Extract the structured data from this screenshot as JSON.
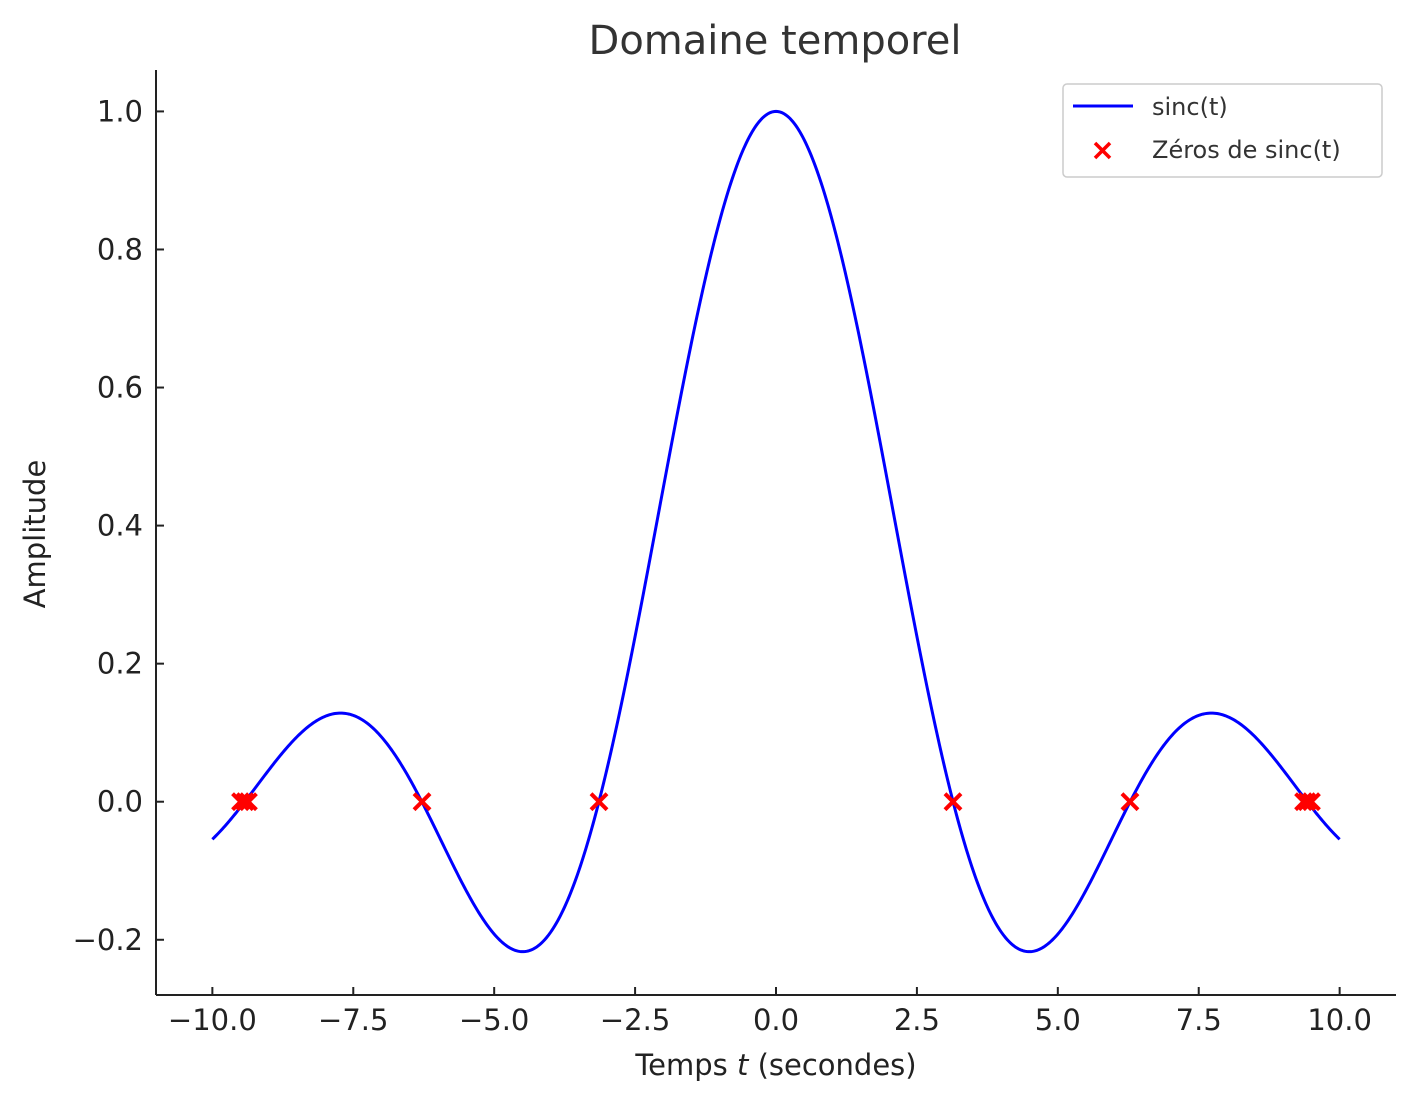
{
  "chart_data": {
    "type": "line",
    "title": "Domaine temporel",
    "xlabel_prefix": "Temps ",
    "xlabel_var": "t",
    "xlabel_suffix": " (secondes)",
    "ylabel": "Amplitude",
    "xlim": [
      -11.0,
      11.0
    ],
    "ylim": [
      -0.28,
      1.06
    ],
    "x_ticks": [
      -10.0,
      -7.5,
      -5.0,
      -2.5,
      0.0,
      2.5,
      5.0,
      7.5,
      10.0
    ],
    "x_tick_labels": [
      "−10.0",
      "−7.5",
      "−5.0",
      "−2.5",
      "0.0",
      "2.5",
      "5.0",
      "7.5",
      "10.0"
    ],
    "y_ticks": [
      -0.2,
      0.0,
      0.2,
      0.4,
      0.6,
      0.8,
      1.0
    ],
    "y_tick_labels": [
      "−0.2",
      "0.0",
      "0.2",
      "0.4",
      "0.6",
      "0.8",
      "1.0"
    ],
    "grid": false,
    "legend_position": "top-right",
    "series": [
      {
        "name": "sinc(t)",
        "kind": "line",
        "function": "sin(t)/t",
        "x_range": [
          -10.0,
          10.0
        ],
        "color": "#0000ff"
      },
      {
        "name": "Zéros de sinc(t)",
        "kind": "scatter",
        "marker": "x",
        "color": "#ff0000",
        "x": [
          -9.5,
          -9.42,
          -9.36,
          -6.28,
          -3.14,
          3.14,
          6.28,
          9.36,
          9.42,
          9.5
        ],
        "y": [
          0,
          0,
          0,
          0,
          0,
          0,
          0,
          0,
          0,
          0
        ]
      }
    ]
  }
}
